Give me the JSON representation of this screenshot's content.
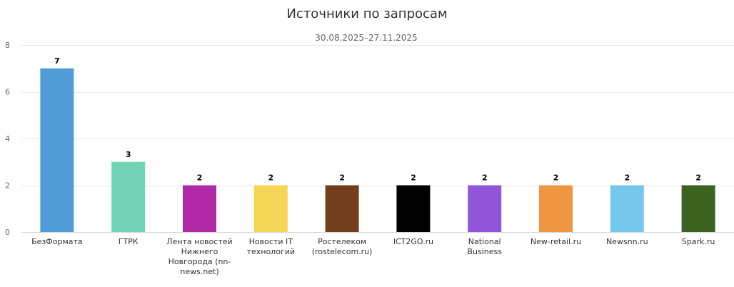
{
  "chart_data": {
    "type": "bar",
    "title": "Источники по запросам",
    "subtitle": "30.08.2025–27.11.2025",
    "categories": [
      "БезФормата",
      "ГТРК",
      "Лента новостей Нижнего Новгорода (nn-news.net)",
      "Новости IT технологий",
      "Ростелеком (rostelecom.ru)",
      "ICT2GO.ru",
      "National Business",
      "New-retail.ru",
      "Newsnn.ru",
      "Spark.ru"
    ],
    "values": [
      7,
      3,
      2,
      2,
      2,
      2,
      2,
      2,
      2,
      2
    ],
    "colors": [
      "#519dd8",
      "#6fd3b4",
      "#b02aa8",
      "#f5d555",
      "#713f1b",
      "#000000",
      "#9156da",
      "#ee9641",
      "#75c8ec",
      "#3e6320"
    ],
    "ylim": [
      0,
      8
    ],
    "yticks": [
      0,
      2,
      4,
      6,
      8
    ],
    "grid": true,
    "legend": "none",
    "data_labels": true
  }
}
